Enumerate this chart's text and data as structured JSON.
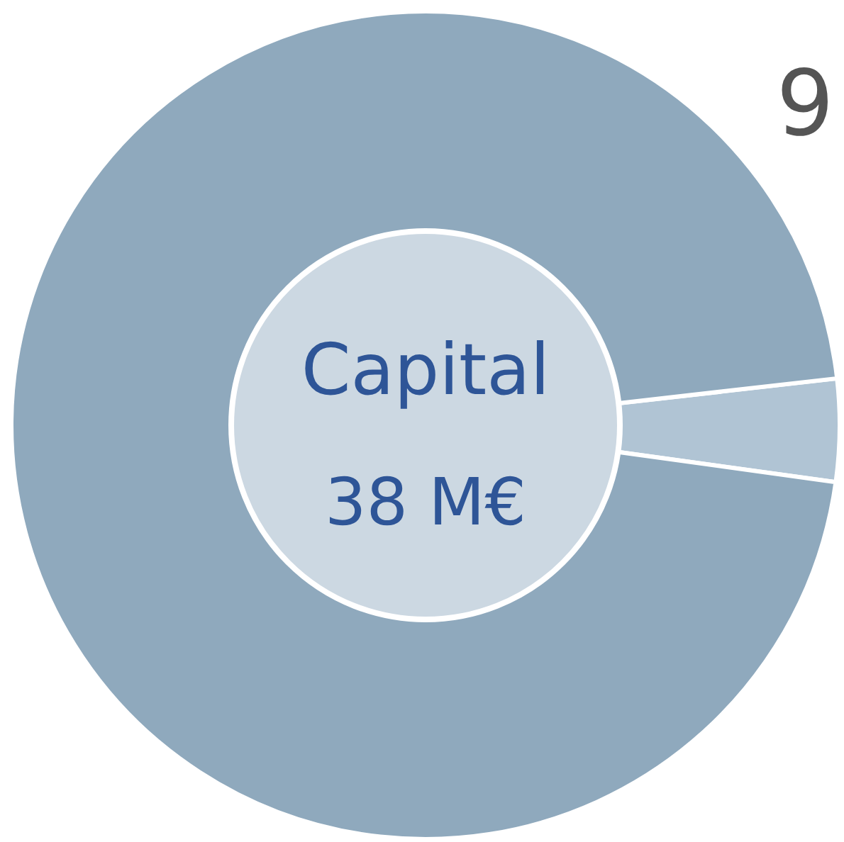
{
  "chart_data": {
    "type": "donut",
    "title": "Capital",
    "subtitle": "38 M€",
    "categories": [
      null,
      null
    ],
    "values": [
      4,
      96
    ],
    "colors": [
      "#b0c4d4",
      "#8fa9bd"
    ],
    "annotations": [
      "9"
    ]
  }
}
